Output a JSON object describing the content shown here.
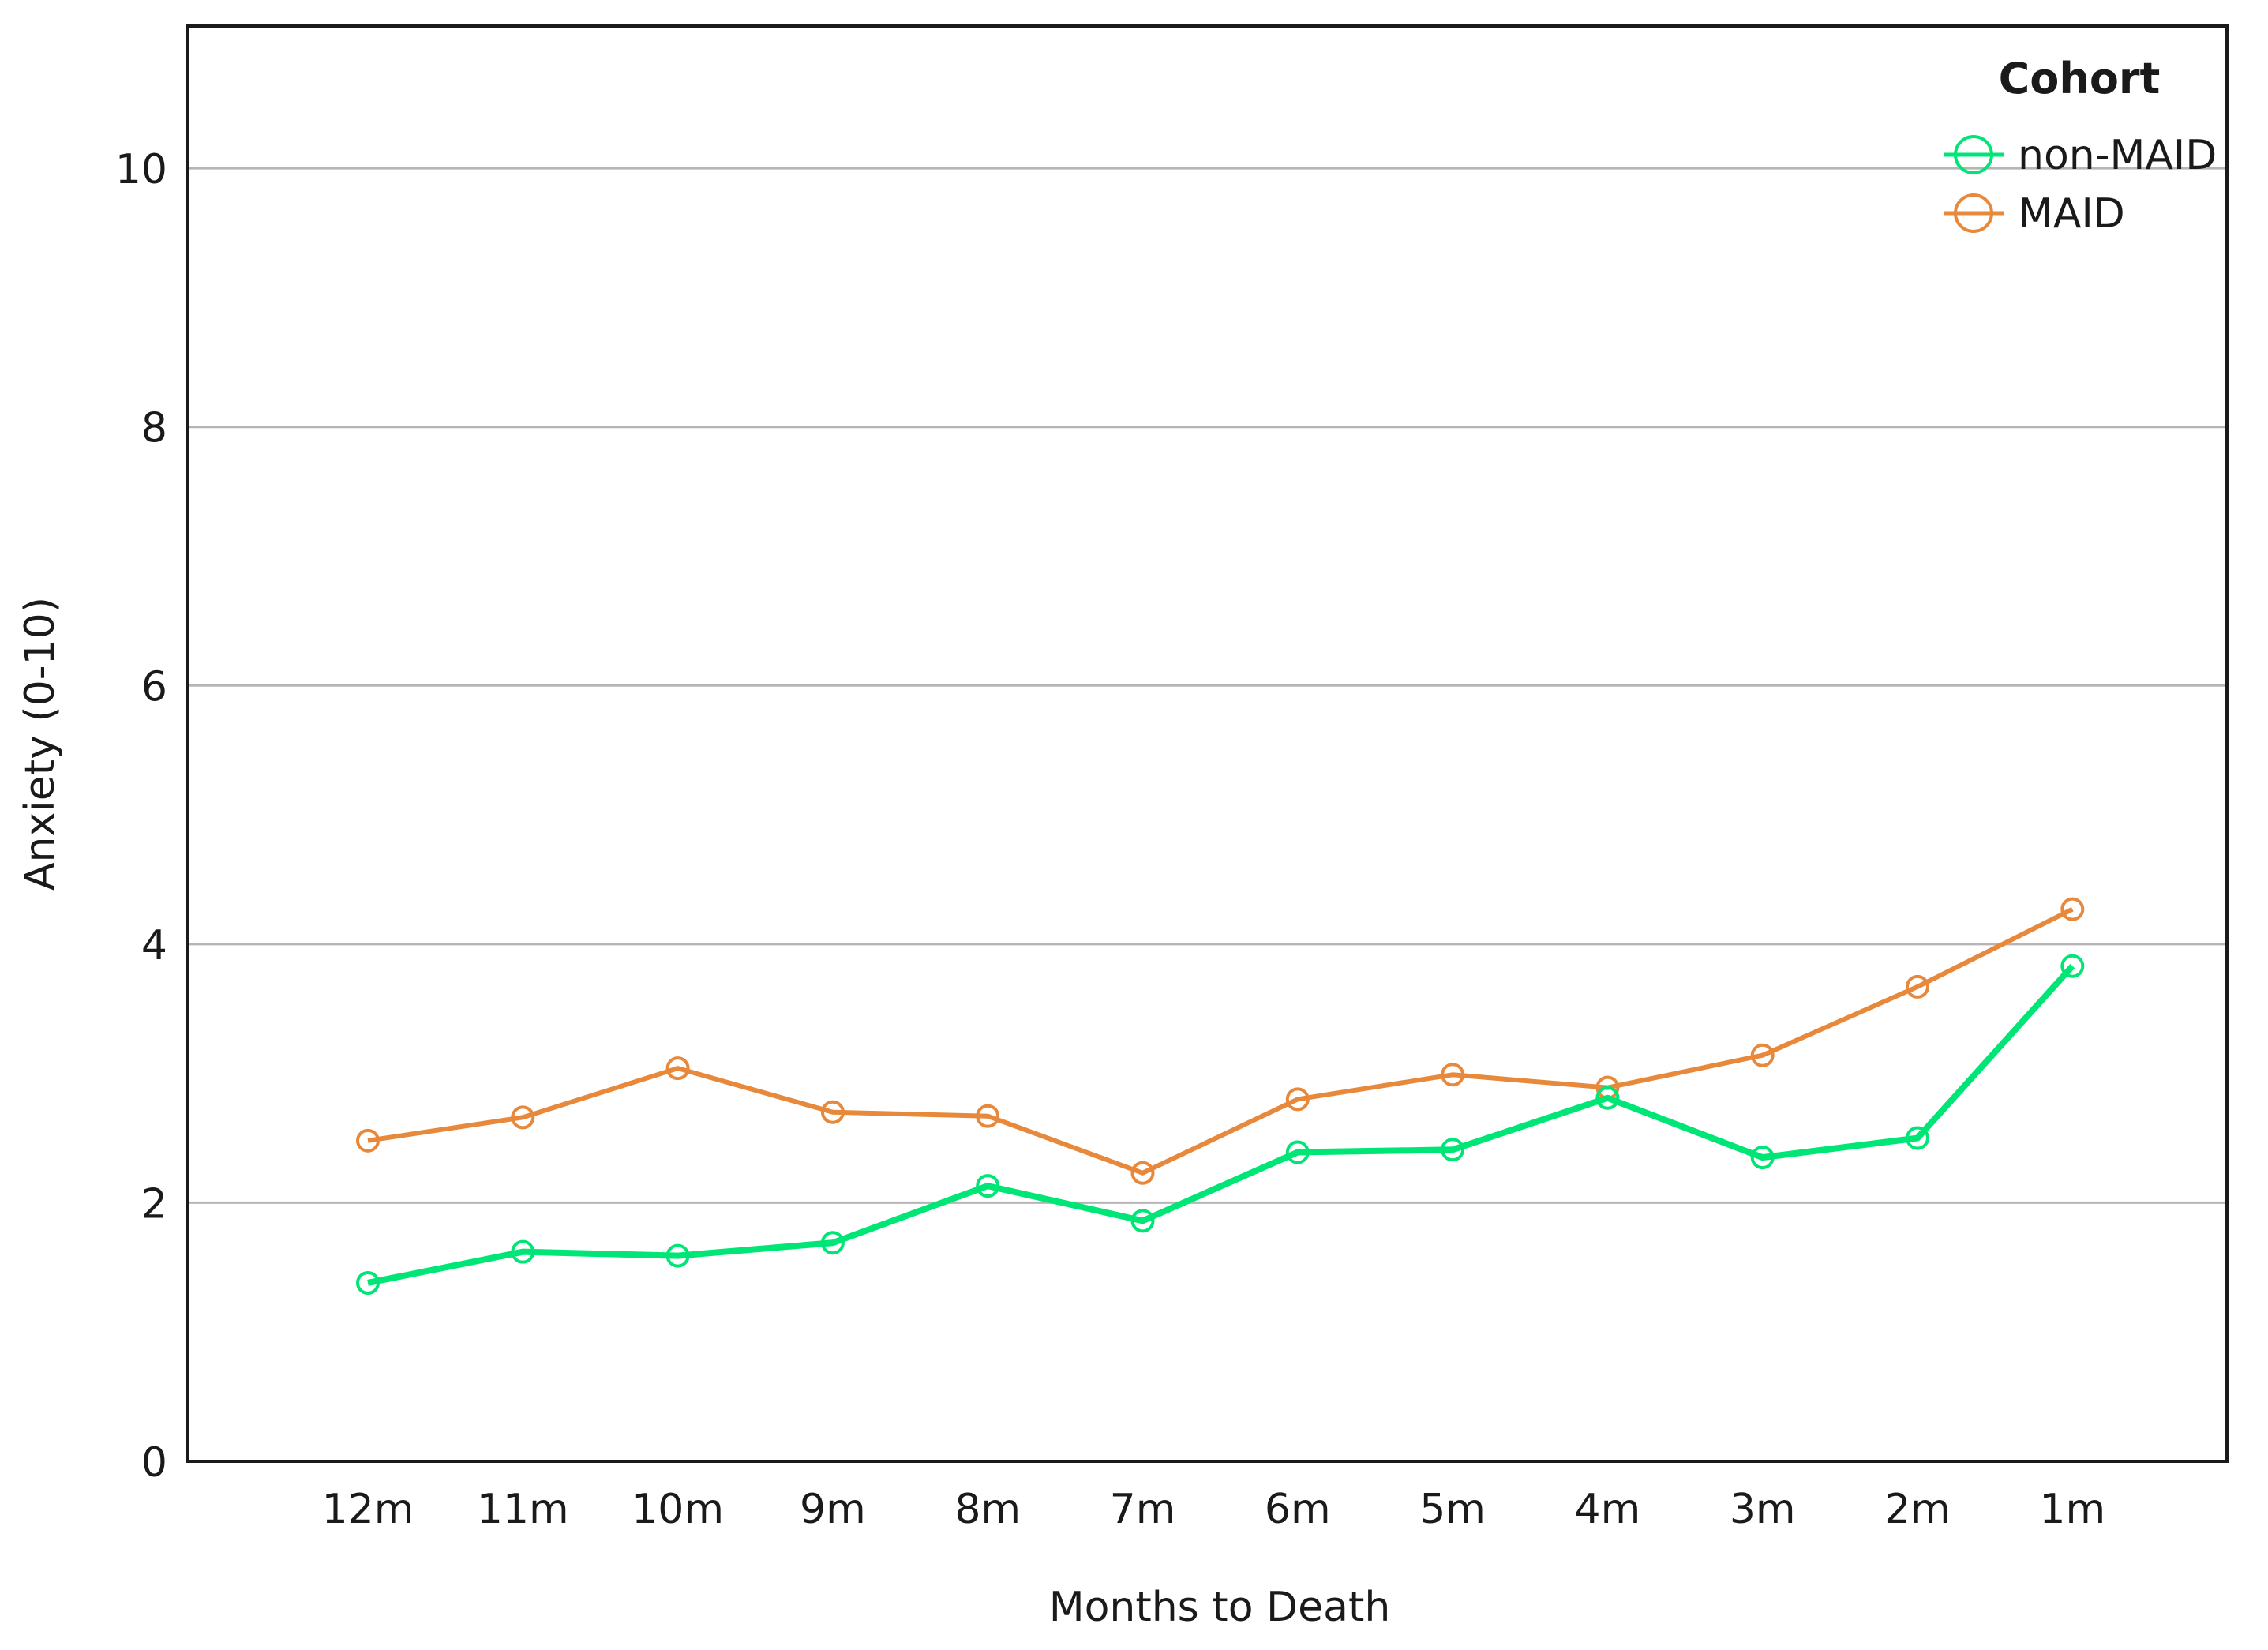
{
  "chart_data": {
    "type": "line",
    "title": "",
    "xlabel": "Months to Death",
    "ylabel": "Anxiety (0-10)",
    "categories": [
      "12m",
      "11m",
      "10m",
      "9m",
      "8m",
      "7m",
      "6m",
      "5m",
      "4m",
      "3m",
      "2m",
      "1m"
    ],
    "ylim": [
      0,
      11.1
    ],
    "yticks": [
      0,
      2,
      4,
      6,
      8,
      10
    ],
    "grid": true,
    "legend": {
      "title": "Cohort",
      "position": "top-right"
    },
    "series": [
      {
        "name": "non-MAID",
        "color": "#00e676",
        "values": [
          1.38,
          1.62,
          1.59,
          1.69,
          2.13,
          1.86,
          2.39,
          2.41,
          2.81,
          2.35,
          2.5,
          3.83
        ]
      },
      {
        "name": "MAID",
        "color": "#e8883a",
        "values": [
          2.48,
          2.66,
          3.04,
          2.7,
          2.67,
          2.23,
          2.8,
          2.99,
          2.89,
          3.14,
          3.67,
          4.27
        ]
      }
    ]
  }
}
